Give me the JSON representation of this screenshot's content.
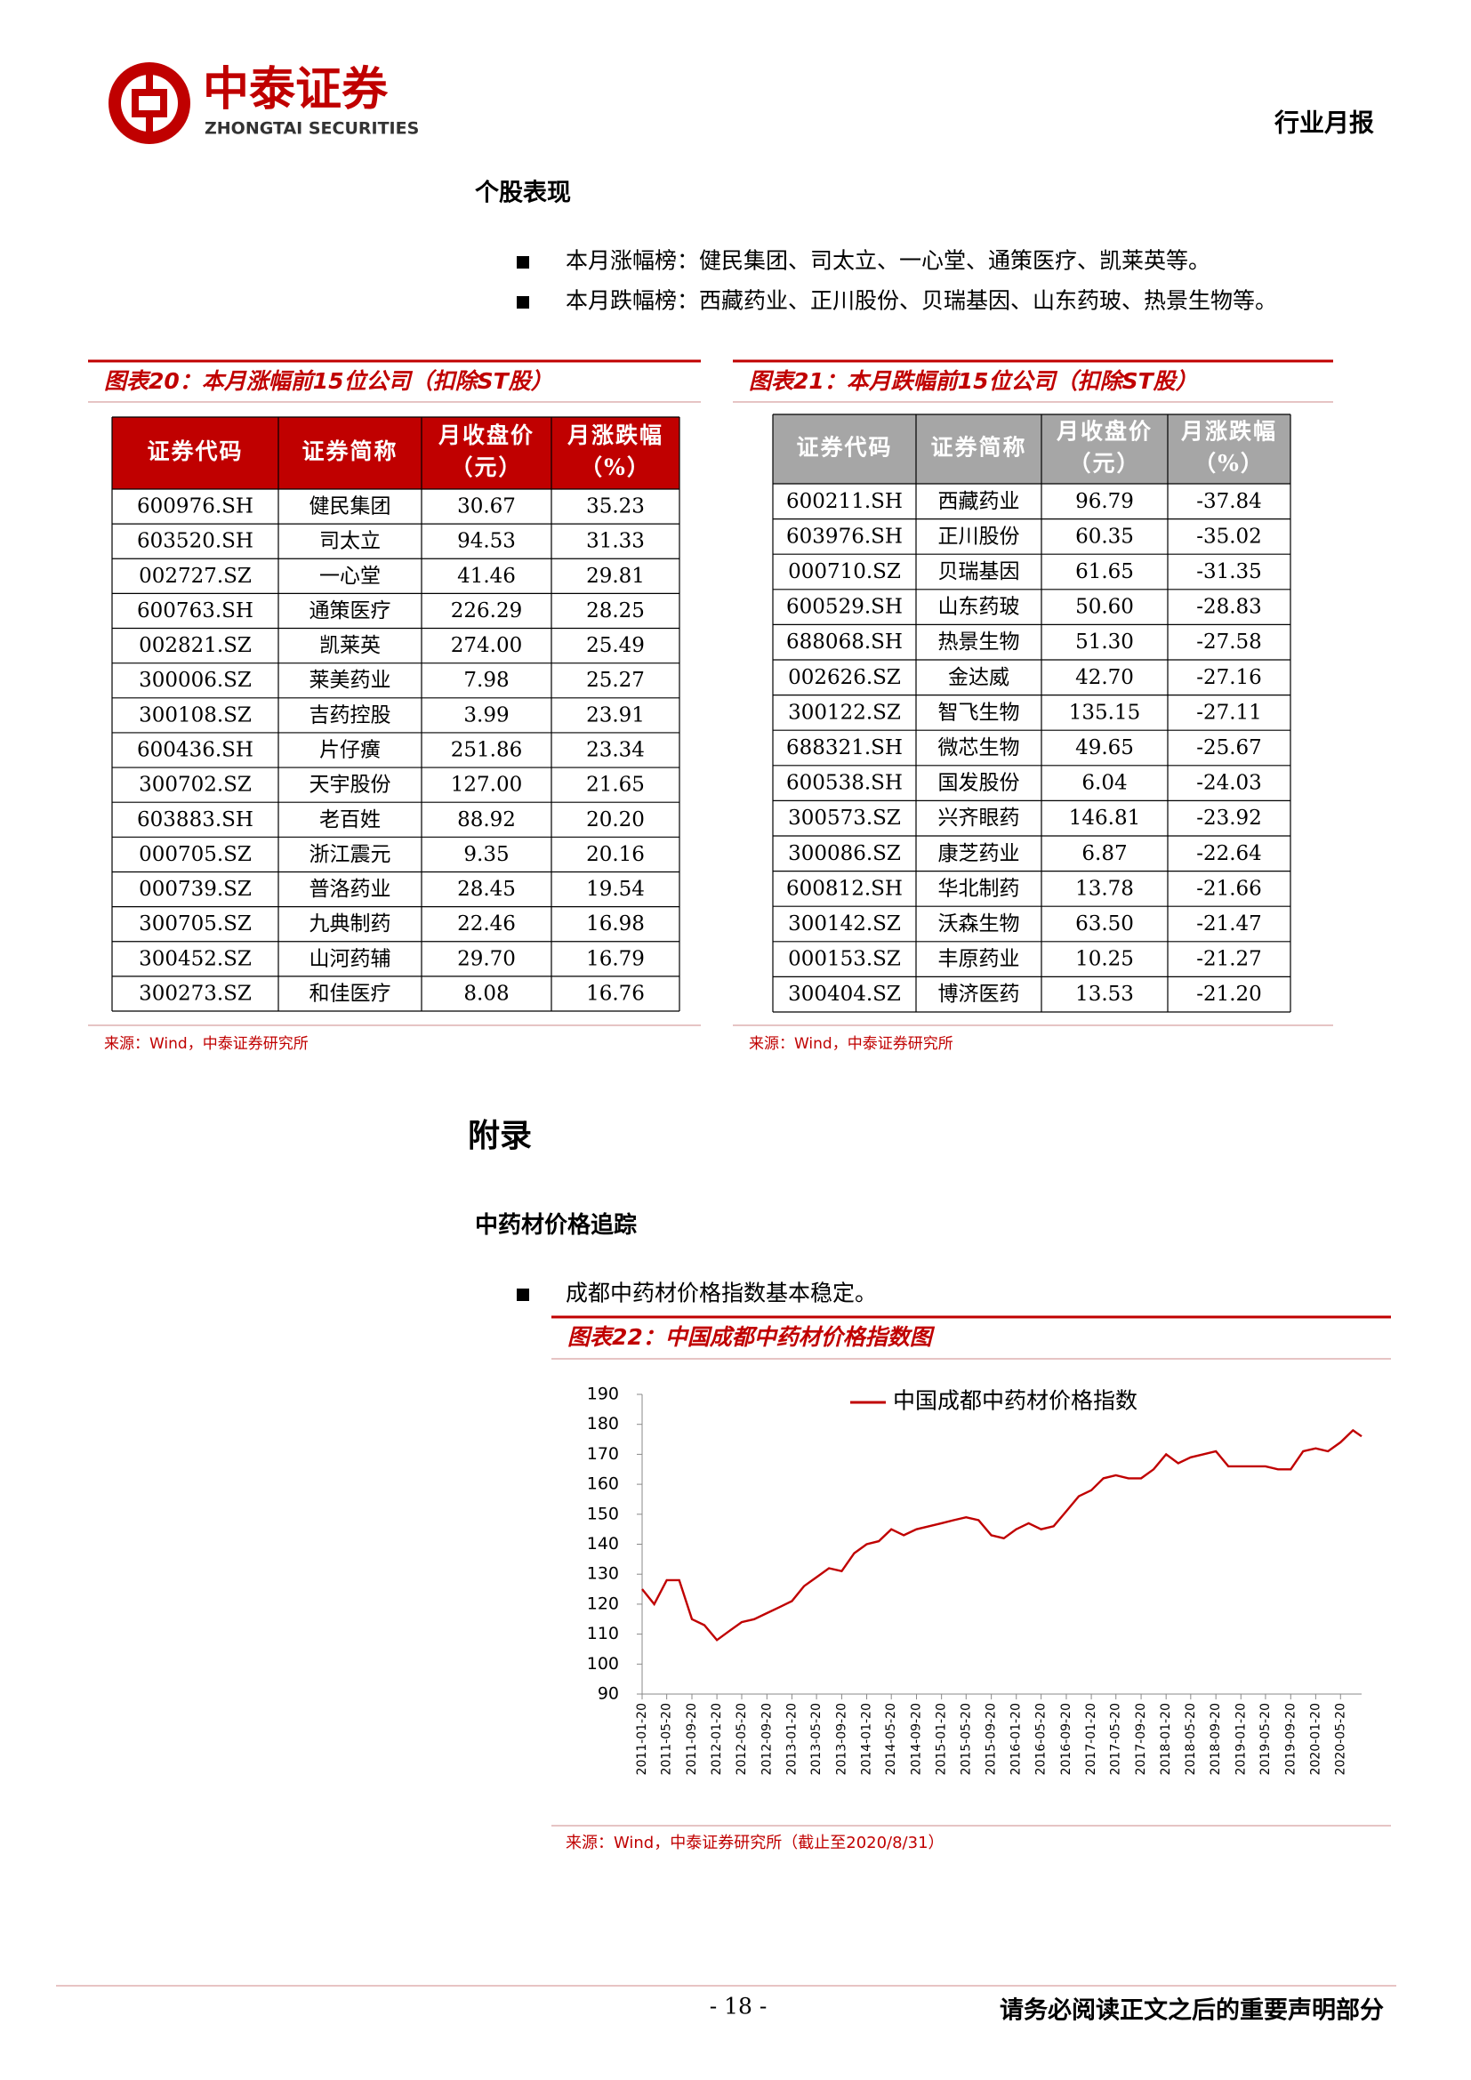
{
  "header": {
    "company": "中泰证券",
    "company_en": "ZHONGTAI SECURITIES",
    "report_type": "行业月报"
  },
  "section1": {
    "title": "个股表现",
    "bullets": [
      "本月涨幅榜：健民集团、司太立、一心堂、通策医疗、凯莱英等。",
      "本月跌幅榜：西藏药业、正川股份、贝瑞基因、山东药玻、热景生物等。"
    ]
  },
  "tables": [
    {
      "title": "图表20：本月涨幅前15位公司（扣除ST股）",
      "header": [
        [
          "证券代码"
        ],
        [
          "证券简称"
        ],
        [
          "月收盘价",
          "（元）"
        ],
        [
          "月涨跌幅",
          "（%）"
        ]
      ],
      "rows": [
        [
          "600976.SH",
          "健民集团",
          "30.67",
          "35.23"
        ],
        [
          "603520.SH",
          "司太立",
          "94.53",
          "31.33"
        ],
        [
          "002727.SZ",
          "一心堂",
          "41.46",
          "29.81"
        ],
        [
          "600763.SH",
          "通策医疗",
          "226.29",
          "28.25"
        ],
        [
          "002821.SZ",
          "凯莱英",
          "274.00",
          "25.49"
        ],
        [
          "300006.SZ",
          "莱美药业",
          "7.98",
          "25.27"
        ],
        [
          "300108.SZ",
          "吉药控股",
          "3.99",
          "23.91"
        ],
        [
          "600436.SH",
          "片仔癀",
          "251.86",
          "23.34"
        ],
        [
          "300702.SZ",
          "天宇股份",
          "127.00",
          "21.65"
        ],
        [
          "603883.SH",
          "老百姓",
          "88.92",
          "20.20"
        ],
        [
          "000705.SZ",
          "浙江震元",
          "9.35",
          "20.16"
        ],
        [
          "000739.SZ",
          "普洛药业",
          "28.45",
          "19.54"
        ],
        [
          "300705.SZ",
          "九典制药",
          "22.46",
          "16.98"
        ],
        [
          "300452.SZ",
          "山河药辅",
          "29.70",
          "16.79"
        ],
        [
          "300273.SZ",
          "和佳医疗",
          "8.08",
          "16.76"
        ]
      ],
      "source": "来源：Wind，中泰证券研究所"
    },
    {
      "title": "图表21：本月跌幅前15位公司（扣除ST股）",
      "header": [
        [
          "证券代码"
        ],
        [
          "证券简称"
        ],
        [
          "月收盘价",
          "（元）"
        ],
        [
          "月涨跌幅",
          "（%）"
        ]
      ],
      "rows": [
        [
          "600211.SH",
          "西藏药业",
          "96.79",
          "-37.84"
        ],
        [
          "603976.SH",
          "正川股份",
          "60.35",
          "-35.02"
        ],
        [
          "000710.SZ",
          "贝瑞基因",
          "61.65",
          "-31.35"
        ],
        [
          "600529.SH",
          "山东药玻",
          "50.60",
          "-28.83"
        ],
        [
          "688068.SH",
          "热景生物",
          "51.30",
          "-27.58"
        ],
        [
          "002626.SZ",
          "金达威",
          "42.70",
          "-27.16"
        ],
        [
          "300122.SZ",
          "智飞生物",
          "135.15",
          "-27.11"
        ],
        [
          "688321.SH",
          "微芯生物",
          "49.65",
          "-25.67"
        ],
        [
          "600538.SH",
          "国发股份",
          "6.04",
          "-24.03"
        ],
        [
          "300573.SZ",
          "兴齐眼药",
          "146.81",
          "-23.92"
        ],
        [
          "300086.SZ",
          "康芝药业",
          "6.87",
          "-22.64"
        ],
        [
          "600812.SH",
          "华北制药",
          "13.78",
          "-21.66"
        ],
        [
          "300142.SZ",
          "沃森生物",
          "63.50",
          "-21.47"
        ],
        [
          "000153.SZ",
          "丰原药业",
          "10.25",
          "-21.27"
        ],
        [
          "300404.SZ",
          "博济医药",
          "13.53",
          "-21.20"
        ]
      ],
      "source": "来源：Wind，中泰证券研究所"
    }
  ],
  "section2": {
    "title": "附录",
    "subtitle": "中药材价格追踪",
    "bullets": [
      "成都中药材价格指数基本稳定。"
    ]
  },
  "chart_data": {
    "type": "line",
    "title": "图表22：中国成都中药材价格指数图",
    "x": [
      "2011-01-20",
      "2011-03-20",
      "2011-05-20",
      "2011-07-20",
      "2011-09-20",
      "2011-11-20",
      "2012-01-20",
      "2012-03-20",
      "2012-05-20",
      "2012-07-20",
      "2012-09-20",
      "2012-11-20",
      "2013-01-20",
      "2013-03-20",
      "2013-05-20",
      "2013-07-20",
      "2013-09-20",
      "2013-11-20",
      "2014-01-20",
      "2014-03-20",
      "2014-05-20",
      "2014-07-20",
      "2014-09-20",
      "2014-11-20",
      "2015-01-20",
      "2015-03-20",
      "2015-05-20",
      "2015-07-20",
      "2015-09-20",
      "2015-11-20",
      "2016-01-20",
      "2016-03-20",
      "2016-05-20",
      "2016-07-20",
      "2016-09-20",
      "2016-11-20",
      "2017-01-20",
      "2017-03-20",
      "2017-05-20",
      "2017-07-20",
      "2017-09-20",
      "2017-11-20",
      "2018-01-20",
      "2018-03-20",
      "2018-05-20",
      "2018-07-20",
      "2018-09-20",
      "2018-11-20",
      "2019-01-20",
      "2019-03-20",
      "2019-05-20",
      "2019-07-20",
      "2019-09-20",
      "2019-11-20",
      "2020-01-20",
      "2020-03-20",
      "2020-05-20",
      "2020-07-20",
      "2020-08-31"
    ],
    "series": [
      {
        "name": "中国成都中药材价格指数",
        "color": "#c00000",
        "values": [
          125,
          120,
          128,
          128,
          115,
          113,
          108,
          111,
          114,
          115,
          117,
          119,
          121,
          126,
          129,
          132,
          131,
          137,
          140,
          141,
          145,
          143,
          145,
          146,
          147,
          148,
          149,
          148,
          143,
          142,
          145,
          147,
          145,
          146,
          151,
          156,
          158,
          162,
          163,
          162,
          162,
          165,
          170,
          167,
          169,
          170,
          171,
          166,
          166,
          166,
          166,
          165,
          165,
          171,
          172,
          171,
          174,
          178,
          176
        ]
      }
    ],
    "xlim": [
      "2011-01-20",
      "2020-08-31"
    ],
    "xticks": [
      "2011-01-20",
      "2011-05-20",
      "2011-09-20",
      "2012-01-20",
      "2012-05-20",
      "2012-09-20",
      "2013-01-20",
      "2013-05-20",
      "2013-09-20",
      "2014-01-20",
      "2014-05-20",
      "2014-09-20",
      "2015-01-20",
      "2015-05-20",
      "2015-09-20",
      "2016-01-20",
      "2016-05-20",
      "2016-09-20",
      "2017-01-20",
      "2017-05-20",
      "2017-09-20",
      "2018-01-20",
      "2018-05-20",
      "2018-09-20",
      "2019-01-20",
      "2019-05-20",
      "2019-09-20",
      "2020-01-20",
      "2020-05-20"
    ],
    "ylim": [
      90,
      190
    ],
    "yticks": [
      90,
      100,
      110,
      120,
      130,
      140,
      150,
      160,
      170,
      180,
      190
    ],
    "legend": "top",
    "source": "来源：Wind，中泰证券研究所（截止至2020/8/31）"
  },
  "footer": {
    "page": "- 18 -",
    "disclaimer": "请务必阅读正文之后的重要声明部分"
  }
}
